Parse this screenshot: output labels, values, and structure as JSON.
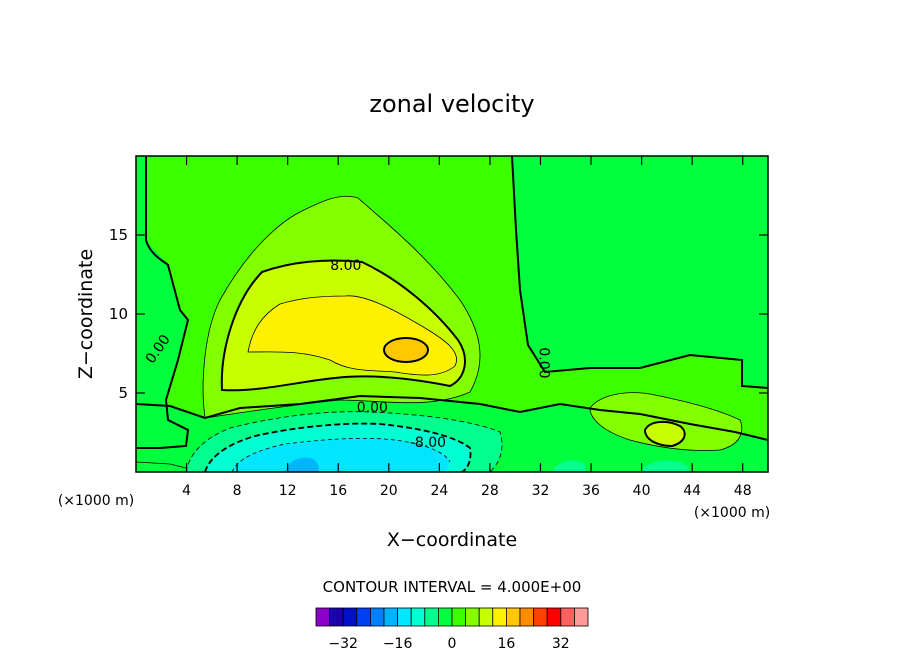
{
  "chart_data": {
    "type": "contour",
    "title": "zonal velocity",
    "xlabel": "X−coordinate",
    "ylabel": "Z−coordinate",
    "x_unit_left": "(×1000 m)",
    "x_unit_right": "(×1000 m)",
    "xlim": [
      0,
      50
    ],
    "ylim": [
      0,
      20
    ],
    "x_ticks": [
      4,
      8,
      12,
      16,
      20,
      24,
      28,
      32,
      36,
      40,
      44,
      48
    ],
    "y_ticks": [
      5,
      10,
      15
    ],
    "contour_interval_text": "CONTOUR INTERVAL = 4.000E+00",
    "contour_labels": [
      {
        "text": "8.00",
        "x": 16.6,
        "y": 13.1
      },
      {
        "text": "0.00",
        "x": 1.7,
        "y": 7.8
      },
      {
        "text": "0.00",
        "x": 18.7,
        "y": 4.1
      },
      {
        "text": "0.00",
        "x": 32.3,
        "y": 6.9
      },
      {
        "text": "-8.00",
        "x": 23.1,
        "y": 1.9
      }
    ],
    "colorbar": {
      "levels": [
        -36,
        -32,
        -28,
        -24,
        -20,
        -16,
        -12,
        -8,
        -4,
        0,
        4,
        8,
        12,
        16,
        20,
        24,
        28,
        32,
        36
      ],
      "tick_labels": [
        "−32",
        "−16",
        "0",
        "16",
        "32"
      ],
      "tick_values": [
        -32,
        -16,
        0,
        16,
        32
      ],
      "colors": [
        "#8c00c8",
        "#1e00a8",
        "#0010c8",
        "#0040f0",
        "#0080ff",
        "#00b4ff",
        "#00e6ff",
        "#00ffd2",
        "#00ff8c",
        "#00ff3c",
        "#3cff00",
        "#82ff00",
        "#c8ff00",
        "#fff000",
        "#ffc800",
        "#ff8c00",
        "#ff4000",
        "#ff0000",
        "#ff6060",
        "#ff9a9a"
      ]
    }
  }
}
